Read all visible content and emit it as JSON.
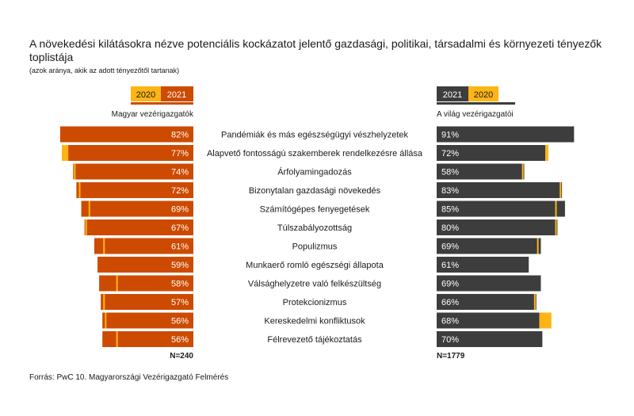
{
  "title": "A növekedési kilátásokra nézve potenciális kockázatot jelentő gazdasági, politikai, társadalmi és környezeti tényezők toplistája",
  "subtitle": "(azok aránya, akik az adott tényezőtől tartanak)",
  "source": "Forrás: PwC 10. Magyarországi Vezérigazgató Felmérés",
  "colors": {
    "orange_dark": "#cc4b00",
    "gold": "#fdb515",
    "gray_dark": "#3d3d3d"
  },
  "chart_data": {
    "type": "bar",
    "categories": [
      "Pandémiák és más egészségügyi vészhelyzetek",
      "Alapvető fontosságú szakemberek rendelkezésre állása",
      "Árfolyamingadozás",
      "Bizonytalan gazdasági növekedés",
      "Számítógépes fenyegetések",
      "Túlszabályozottság",
      "Populizmus",
      "Munkaerő romló egészségi állapota",
      "Válsághelyzetre való felkészültség",
      "Protekcionizmus",
      "Kereskedelmi konfliktusok",
      "Félrevezető tájékoztatás"
    ],
    "panels": [
      {
        "name": "Magyar vezérigazgatók",
        "n_label": "N=240",
        "legend": [
          "2020",
          "2021"
        ],
        "series": [
          {
            "name": "2021",
            "values": [
              82,
              77,
              74,
              72,
              69,
              67,
              61,
              59,
              58,
              57,
              56,
              56
            ],
            "labels": [
              "82%",
              "77%",
              "74%",
              "72%",
              "69%",
              "67%",
              "61%",
              "59%",
              "58%",
              "57%",
              "56%",
              "56%"
            ]
          },
          {
            "name": "2020",
            "values": [
              null,
              81,
              73,
              70,
              64,
              66,
              55,
              null,
              47,
              55,
              54,
              47
            ]
          }
        ]
      },
      {
        "name": "A világ vezérigazgatói",
        "n_label": "N=1779",
        "legend": [
          "2021",
          "2020"
        ],
        "series": [
          {
            "name": "2021",
            "values": [
              91,
              72,
              58,
              83,
              85,
              80,
              69,
              61,
              69,
              66,
              68,
              70
            ],
            "labels": [
              "91%",
              "72%",
              "58%",
              "83%",
              "85%",
              "80%",
              "69%",
              "61%",
              "69%",
              "66%",
              "68%",
              "70%"
            ]
          },
          {
            "name": "2020",
            "values": [
              null,
              74,
              57,
              82,
              79,
              79,
              67,
              null,
              null,
              65,
              76,
              null
            ]
          }
        ]
      }
    ]
  }
}
